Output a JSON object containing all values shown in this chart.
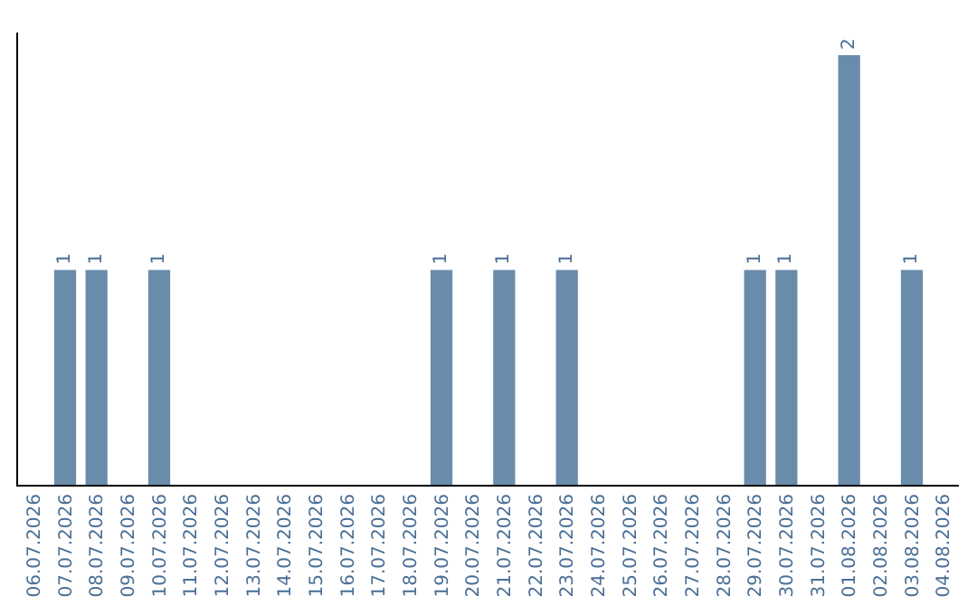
{
  "chart_data": {
    "type": "bar",
    "categories": [
      "06.07.2026",
      "07.07.2026",
      "08.07.2026",
      "09.07.2026",
      "10.07.2026",
      "11.07.2026",
      "12.07.2026",
      "13.07.2026",
      "14.07.2026",
      "15.07.2026",
      "16.07.2026",
      "17.07.2026",
      "18.07.2026",
      "19.07.2026",
      "20.07.2026",
      "21.07.2026",
      "22.07.2026",
      "23.07.2026",
      "24.07.2026",
      "25.07.2026",
      "26.07.2026",
      "27.07.2026",
      "28.07.2026",
      "29.07.2026",
      "30.07.2026",
      "31.07.2026",
      "01.08.2026",
      "02.08.2026",
      "03.08.2026",
      "04.08.2026"
    ],
    "values": [
      0,
      1,
      1,
      0,
      1,
      0,
      0,
      0,
      0,
      0,
      0,
      0,
      0,
      1,
      0,
      1,
      0,
      1,
      0,
      0,
      0,
      0,
      0,
      1,
      1,
      0,
      2,
      0,
      1,
      0
    ],
    "value_labels": [
      null,
      "1",
      "1",
      null,
      "1",
      null,
      null,
      null,
      null,
      null,
      null,
      null,
      null,
      "1",
      null,
      "1",
      null,
      "1",
      null,
      null,
      null,
      null,
      null,
      "1",
      "1",
      null,
      "2",
      null,
      "1",
      null
    ],
    "color": "#6a8cab",
    "grid": false,
    "legend": false,
    "tick_labels": "x"
  }
}
